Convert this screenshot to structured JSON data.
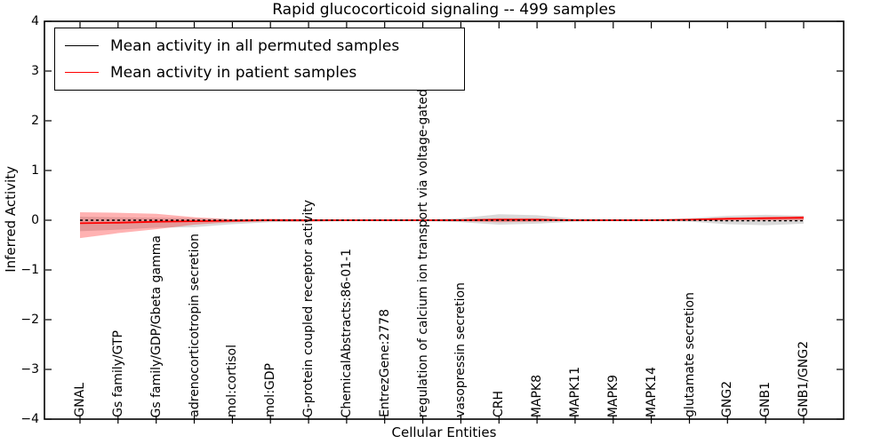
{
  "chart_data": {
    "type": "line",
    "title": "Rapid glucocorticoid signaling -- 499 samples",
    "xlabel": "Cellular Entities",
    "ylabel": "Inferred Activity",
    "ylim": [
      -4,
      4
    ],
    "yticks": [
      -4,
      -3,
      -2,
      -1,
      0,
      1,
      2,
      3,
      4
    ],
    "ytick_labels": [
      "−4",
      "−3",
      "−2",
      "−1",
      "0",
      "1",
      "2",
      "3",
      "4"
    ],
    "grid": false,
    "legend_position": "upper left",
    "colors": {
      "permuted_line": "#000000",
      "patient_line": "#ff0000",
      "permuted_band": "rgba(128,128,128,0.30)",
      "patient_band": "rgba(255,0,0,0.30)",
      "axis": "#000000",
      "background": "#ffffff"
    },
    "categories": [
      "GNAL",
      "Gs family/GTP",
      "Gs family/GDP/Gbeta gamma",
      "adrenocorticotropin secretion",
      "mol:cortisol",
      "mol:GDP",
      "G-protein coupled receptor activity",
      "ChemicalAbstracts:86-01-1",
      "EntrezGene:2778",
      "regulation of calcium ion transport via voltage-gated channels",
      "vasopressin secretion",
      "CRH",
      "MAPK8",
      "MAPK11",
      "MAPK9",
      "MAPK14",
      "glutamate secretion",
      "GNG2",
      "GNB1",
      "GNB1/GNG2"
    ],
    "series": [
      {
        "name": "Mean activity in all permuted samples",
        "kind": "line",
        "style": "dashed",
        "color": "#000000",
        "values": [
          0,
          0,
          0,
          0,
          0,
          0,
          0,
          0,
          0,
          0,
          0,
          0,
          0,
          0,
          0,
          0,
          0,
          -0.01,
          -0.01,
          -0.01
        ]
      },
      {
        "name": "Mean activity in patient samples",
        "kind": "line",
        "style": "solid",
        "color": "#ff0000",
        "values": [
          -0.06,
          -0.05,
          -0.03,
          -0.02,
          -0.01,
          0,
          0,
          0,
          0,
          0,
          0,
          0.01,
          0.01,
          0,
          0,
          0,
          0.01,
          0.03,
          0.04,
          0.05
        ]
      },
      {
        "name": "Permuted samples std band",
        "kind": "band",
        "color": "rgba(128,128,128,0.30)",
        "upper": [
          0.07,
          0.06,
          0.05,
          0.04,
          0.02,
          0.01,
          0.01,
          0.01,
          0.01,
          0.01,
          0.04,
          0.12,
          0.1,
          0.03,
          0.02,
          0.02,
          0.04,
          0.09,
          0.11,
          0.09
        ],
        "lower": [
          -0.22,
          -0.19,
          -0.15,
          -0.14,
          -0.08,
          -0.04,
          -0.03,
          -0.02,
          -0.02,
          -0.02,
          -0.04,
          -0.09,
          -0.07,
          -0.03,
          -0.02,
          -0.02,
          -0.03,
          -0.08,
          -0.1,
          -0.07
        ]
      },
      {
        "name": "Patient samples std band",
        "kind": "band",
        "color": "rgba(255,0,0,0.30)",
        "upper": [
          0.16,
          0.15,
          0.13,
          0.06,
          0.02,
          0.03,
          0.02,
          0.01,
          0.01,
          0.01,
          0.02,
          0.04,
          0.04,
          0.01,
          0.01,
          0.01,
          0.02,
          0.05,
          0.07,
          0.08
        ],
        "lower": [
          -0.36,
          -0.26,
          -0.18,
          -0.09,
          -0.04,
          -0.02,
          -0.03,
          -0.01,
          -0.01,
          -0.01,
          -0.02,
          -0.04,
          -0.03,
          -0.01,
          -0.01,
          -0.01,
          -0.01,
          -0.01,
          -0.01,
          0
        ]
      }
    ],
    "legend": [
      {
        "label": "Mean activity in all permuted samples",
        "color": "#000000"
      },
      {
        "label": "Mean activity in patient samples",
        "color": "#ff0000"
      }
    ]
  }
}
